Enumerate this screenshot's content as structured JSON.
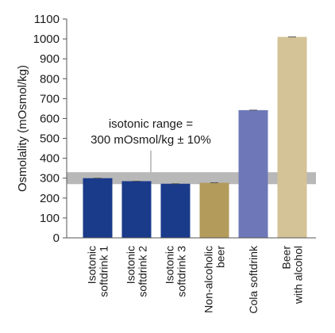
{
  "chart_data": {
    "type": "bar",
    "title": "",
    "xlabel": "",
    "ylabel": "Osmolality (mOsmol/kg)",
    "ylim": [
      0,
      1100
    ],
    "yticks": [
      0,
      100,
      200,
      300,
      400,
      500,
      600,
      700,
      800,
      900,
      1000,
      1100
    ],
    "grid": false,
    "categories": [
      [
        "Isotonic",
        "softdrink 1"
      ],
      [
        "Isotonic",
        "softdrink 2"
      ],
      [
        "Isotonic",
        "softdrink 3"
      ],
      [
        "Non-alcoholic",
        "beer"
      ],
      [
        "Cola softdrink"
      ],
      [
        "Beer",
        "with alcohol"
      ]
    ],
    "values": [
      300,
      285,
      272,
      277,
      642,
      1010
    ],
    "colors": [
      "#1a3a8a",
      "#1a3a8a",
      "#1a3a8a",
      "#b39b5c",
      "#6e78b8",
      "#d4c397"
    ],
    "range_band": {
      "low": 270,
      "high": 330,
      "color": "#b8b8b8",
      "label": [
        "isotonic range =",
        "300 mOsmol/kg ± 10%"
      ]
    }
  }
}
